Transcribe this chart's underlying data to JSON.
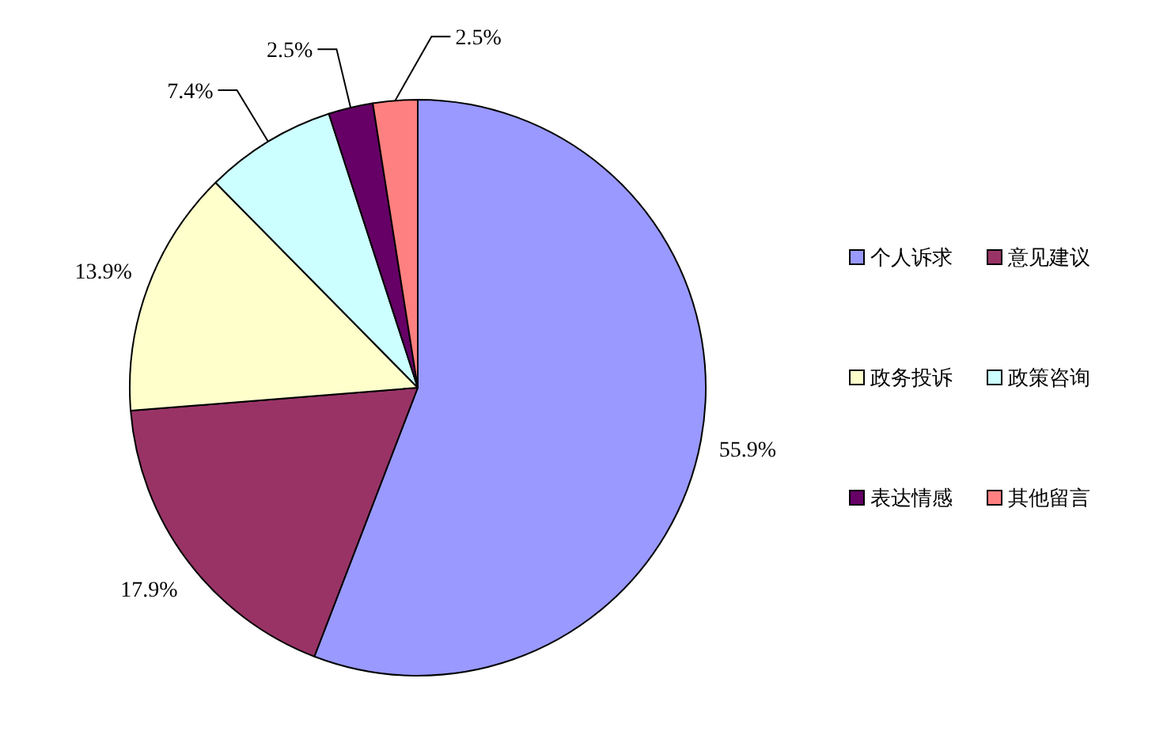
{
  "chart_data": {
    "type": "pie",
    "categories": [
      "个人诉求",
      "意见建议",
      "政务投诉",
      "政策咨询",
      "表达情感",
      "其他留言"
    ],
    "values": [
      55.9,
      17.9,
      13.9,
      7.4,
      2.5,
      2.5
    ],
    "colors": [
      "#9999ff",
      "#993366",
      "#ffffcc",
      "#ccffff",
      "#660066",
      "#ff8080"
    ],
    "value_labels": [
      "55.9%",
      "17.9%",
      "13.9%",
      "7.4%",
      "2.5%",
      "2.5%"
    ],
    "legend": "right"
  }
}
